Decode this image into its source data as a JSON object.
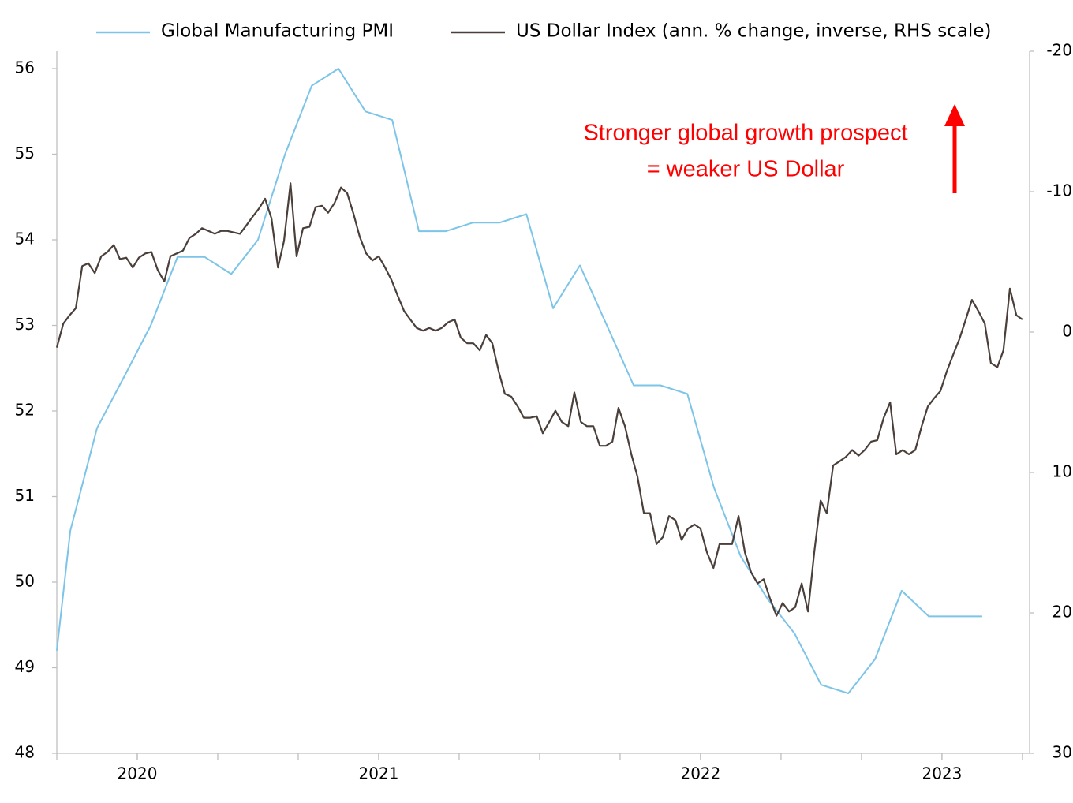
{
  "chart_data": {
    "type": "line",
    "series": [
      {
        "name": "Global Manufacturing PMI",
        "color": "#7cc4e8",
        "axis": "y",
        "x": [
          2020.458,
          2020.5,
          2020.583,
          2020.667,
          2020.75,
          2020.833,
          2020.917,
          2021,
          2021.083,
          2021.167,
          2021.25,
          2021.333,
          2021.417,
          2021.5,
          2021.583,
          2021.667,
          2021.75,
          2021.833,
          2021.917,
          2022,
          2022.083,
          2022.167,
          2022.25,
          2022.333,
          2022.417,
          2022.5,
          2022.583,
          2022.667,
          2022.75,
          2022.833,
          2022.917,
          2023,
          2023.083,
          2023.167,
          2023.25,
          2023.333
        ],
        "values": [
          49.2,
          50.6,
          51.8,
          52.4,
          53.0,
          53.8,
          53.8,
          53.6,
          54.0,
          55.0,
          55.8,
          56.0,
          55.5,
          55.4,
          54.1,
          54.1,
          54.2,
          54.2,
          54.3,
          53.2,
          53.7,
          53.0,
          52.3,
          52.3,
          52.2,
          51.1,
          50.3,
          49.8,
          49.4,
          48.8,
          48.7,
          49.1,
          49.9,
          49.6,
          49.6,
          49.6
        ]
      },
      {
        "name": "US Dollar Index (ann. % change, inverse, RHS scale)",
        "color": "#4a3f3a",
        "axis": "y2",
        "x": [
          2020.458,
          2020.478,
          2020.498,
          2020.517,
          2020.537,
          2020.556,
          2020.576,
          2020.596,
          2020.615,
          2020.635,
          2020.654,
          2020.674,
          2020.694,
          2020.713,
          2020.733,
          2020.752,
          2020.772,
          2020.792,
          2020.811,
          2020.831,
          2020.85,
          2020.87,
          2020.89,
          2020.909,
          2020.929,
          2020.949,
          2020.968,
          2020.988,
          2021.007,
          2021.027,
          2021.047,
          2021.066,
          2021.086,
          2021.105,
          2021.125,
          2021.145,
          2021.164,
          2021.184,
          2021.203,
          2021.223,
          2021.243,
          2021.262,
          2021.282,
          2021.301,
          2021.321,
          2021.341,
          2021.36,
          2021.38,
          2021.399,
          2021.419,
          2021.439,
          2021.458,
          2021.478,
          2021.498,
          2021.517,
          2021.537,
          2021.556,
          2021.576,
          2021.596,
          2021.615,
          2021.635,
          2021.654,
          2021.674,
          2021.694,
          2021.713,
          2021.733,
          2021.752,
          2021.772,
          2021.792,
          2021.811,
          2021.831,
          2021.85,
          2021.87,
          2021.89,
          2021.909,
          2021.929,
          2021.949,
          2021.968,
          2021.988,
          2022.007,
          2022.027,
          2022.047,
          2022.066,
          2022.086,
          2022.105,
          2022.125,
          2022.145,
          2022.164,
          2022.184,
          2022.203,
          2022.223,
          2022.243,
          2022.262,
          2022.282,
          2022.301,
          2022.321,
          2022.341,
          2022.36,
          2022.38,
          2022.399,
          2022.419,
          2022.439,
          2022.458,
          2022.478,
          2022.498,
          2022.517,
          2022.537,
          2022.556,
          2022.576,
          2022.596,
          2022.615,
          2022.635,
          2022.654,
          2022.674,
          2022.694,
          2022.713,
          2022.733,
          2022.752,
          2022.772,
          2022.792,
          2022.811,
          2022.831,
          2022.85,
          2022.87,
          2022.89,
          2022.909,
          2022.929,
          2022.949,
          2022.968,
          2022.988,
          2023.007,
          2023.027,
          2023.047,
          2023.066,
          2023.086,
          2023.105,
          2023.125,
          2023.145,
          2023.164,
          2023.184,
          2023.203,
          2023.223,
          2023.243,
          2023.262,
          2023.282,
          2023.301,
          2023.321,
          2023.341,
          2023.36,
          2023.38,
          2023.399,
          2023.419,
          2023.439,
          2023.458
        ],
        "values": [
          1.1,
          -0.6,
          -1.2,
          -1.7,
          -4.7,
          -4.9,
          -4.2,
          -5.4,
          -5.7,
          -6.2,
          -5.2,
          -5.3,
          -4.6,
          -5.3,
          -5.6,
          -5.7,
          -4.4,
          -3.6,
          -5.4,
          -5.6,
          -5.8,
          -6.7,
          -7.0,
          -7.4,
          -7.2,
          -7.0,
          -7.2,
          -7.2,
          -7.1,
          -7.0,
          -7.6,
          -8.2,
          -8.8,
          -9.5,
          -8.1,
          -4.6,
          -6.5,
          -10.6,
          -5.4,
          -7.4,
          -7.5,
          -8.9,
          -9.0,
          -8.5,
          -9.2,
          -10.3,
          -9.9,
          -8.4,
          -6.8,
          -5.6,
          -5.1,
          -5.4,
          -4.6,
          -3.7,
          -2.6,
          -1.5,
          -0.9,
          -0.3,
          -0.1,
          -0.3,
          -0.1,
          -0.3,
          -0.7,
          -0.9,
          0.4,
          0.8,
          0.8,
          1.3,
          0.2,
          0.8,
          2.8,
          4.4,
          4.6,
          5.3,
          6.1,
          6.1,
          6.0,
          7.2,
          6.4,
          5.6,
          6.4,
          6.7,
          4.3,
          6.4,
          6.7,
          6.7,
          8.1,
          8.1,
          7.8,
          5.4,
          6.7,
          8.7,
          10.3,
          12.9,
          12.9,
          15.1,
          14.6,
          13.1,
          13.4,
          14.8,
          14.0,
          13.7,
          14.0,
          15.7,
          16.8,
          15.1,
          15.1,
          15.1,
          13.1,
          15.7,
          17.1,
          17.9,
          17.6,
          19.0,
          20.2,
          19.3,
          19.9,
          19.6,
          17.9,
          19.9,
          15.7,
          12.0,
          12.9,
          9.5,
          9.2,
          8.9,
          8.4,
          8.8,
          8.4,
          7.8,
          7.7,
          6.1,
          5.0,
          8.7,
          8.4,
          8.7,
          8.4,
          6.7,
          5.3,
          4.7,
          4.2,
          2.8,
          1.6,
          0.5,
          -0.9,
          -2.3,
          -1.5,
          -0.6,
          2.2,
          2.5,
          1.3,
          -3.1,
          -1.2,
          -0.9
        ]
      }
    ],
    "xlim": [
      2020.458,
      2023.468
    ],
    "xticks": [
      {
        "value": 2020.708,
        "label": "2020"
      },
      {
        "value": 2021.458,
        "label": "2021"
      },
      {
        "value": 2022.458,
        "label": "2022"
      },
      {
        "value": 2023.208,
        "label": "2023"
      }
    ],
    "xminor_ticks": [
      2020.458,
      2020.708,
      2020.958,
      2021.208,
      2021.458,
      2021.708,
      2021.958,
      2022.208,
      2022.458,
      2022.708,
      2022.958,
      2023.208,
      2023.458
    ],
    "ylim": [
      48,
      56
    ],
    "yticks": [
      48,
      49,
      50,
      51,
      52,
      53,
      54,
      55,
      56
    ],
    "y2lim": [
      -20,
      30
    ],
    "y2ticks": [
      -20,
      -10,
      0,
      10,
      20,
      30
    ],
    "y2_inverted": true,
    "legend": "top",
    "annotations": [
      "Stronger global growth prospect",
      "= weaker US Dollar"
    ],
    "annotation_color": "#ff0000"
  }
}
